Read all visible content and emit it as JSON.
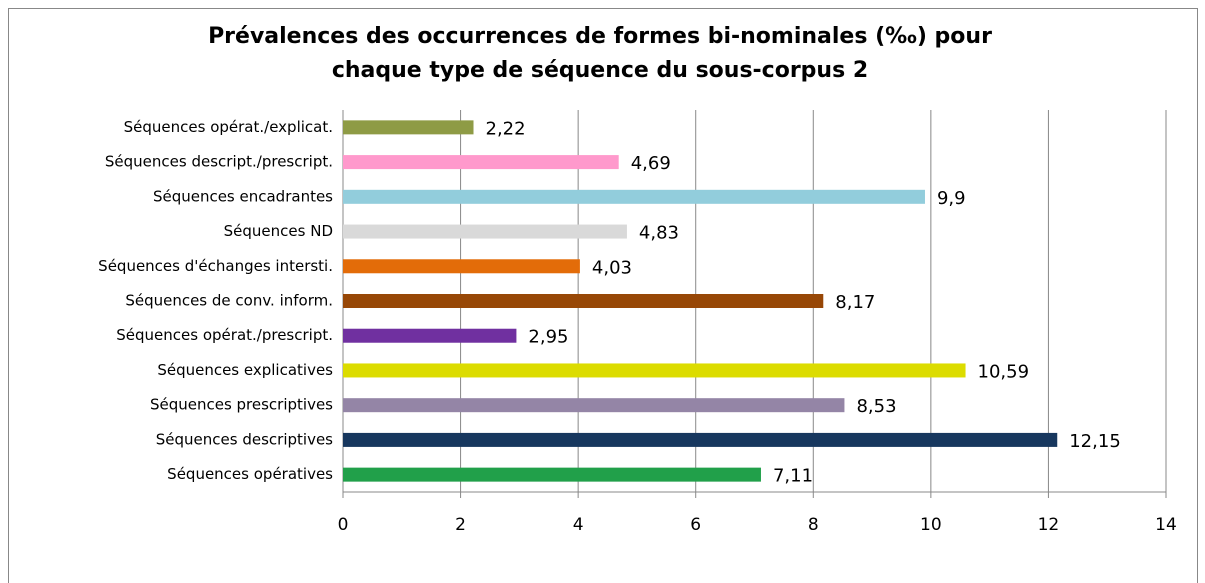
{
  "chart_data": {
    "type": "barh",
    "title": "Prévalences des occurrences de formes bi-nominales (‰) pour chaque type de séquence du sous-corpus 2",
    "categories": [
      "Séquences opérat./explicat.",
      "Séquences descript./prescript.",
      "Séquences encadrantes",
      "Séquences ND",
      "Séquences d'échanges intersti.",
      "Séquences de conv. inform.",
      "Séquences opérat./prescript.",
      "Séquences explicatives",
      "Séquences prescriptives",
      "Séquences descriptives",
      "Séquences opératives"
    ],
    "values": [
      2.22,
      4.69,
      9.9,
      4.83,
      4.03,
      8.17,
      2.95,
      10.59,
      8.53,
      12.15,
      7.11
    ],
    "value_labels": [
      "2,22",
      "4,69",
      "9,9",
      "4,83",
      "4,03",
      "8,17",
      "2,95",
      "10,59",
      "8,53",
      "12,15",
      "7,11"
    ],
    "colors": [
      "#8e9b45",
      "#ff99cc",
      "#92cddc",
      "#d9d9d9",
      "#e36c09",
      "#974706",
      "#7030a0",
      "#dcdc00",
      "#9485a6",
      "#17375e",
      "#21a04a"
    ],
    "xlim": [
      0,
      14
    ],
    "xticks": [
      0,
      2,
      4,
      6,
      8,
      10,
      12,
      14
    ],
    "grid": true
  }
}
